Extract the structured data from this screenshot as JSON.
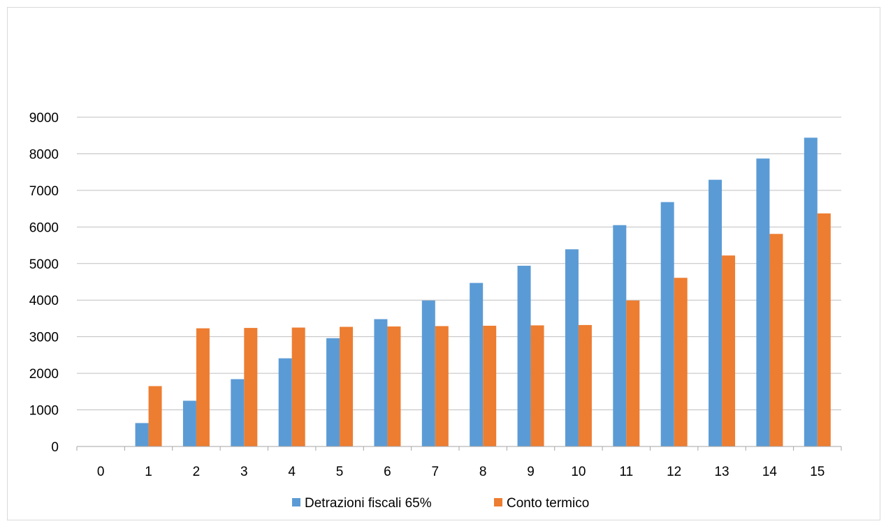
{
  "chart_data": {
    "type": "bar",
    "categories": [
      "0",
      "1",
      "2",
      "3",
      "4",
      "5",
      "6",
      "7",
      "8",
      "9",
      "10",
      "11",
      "12",
      "13",
      "14",
      "15"
    ],
    "series": [
      {
        "name": "Detrazioni fiscali 65%",
        "color": "#5b9bd5",
        "values": [
          0,
          640,
          1250,
          1840,
          2410,
          2960,
          3480,
          3990,
          4470,
          4940,
          5390,
          6050,
          6680,
          7290,
          7870,
          8440
        ]
      },
      {
        "name": "Conto termico",
        "color": "#ed7d31",
        "values": [
          0,
          1650,
          3230,
          3240,
          3250,
          3270,
          3280,
          3290,
          3300,
          3310,
          3320,
          3990,
          4610,
          5220,
          5810,
          6370
        ]
      }
    ],
    "yticks": [
      "0",
      "1000",
      "2000",
      "3000",
      "4000",
      "5000",
      "6000",
      "7000",
      "8000",
      "9000"
    ],
    "ylim": [
      0,
      9000
    ],
    "grid": true,
    "legend_position": "bottom",
    "gridline_color": "#bfbfbf",
    "axis_color": "#a6a6a6"
  }
}
